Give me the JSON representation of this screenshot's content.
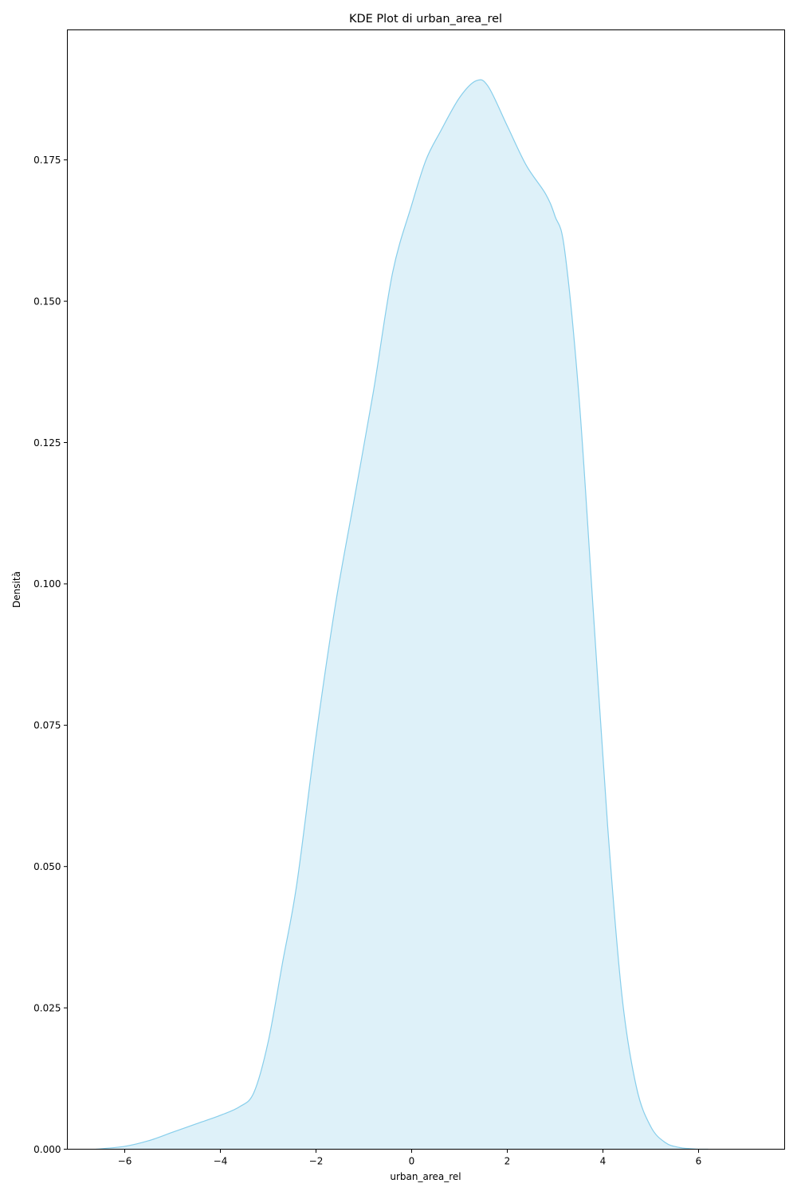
{
  "chart_data": {
    "type": "area",
    "title": "KDE Plot di urban_area_rel",
    "xlabel": "urban_area_rel",
    "ylabel": "Densità",
    "xlim": [
      -7.2,
      7.8
    ],
    "ylim": [
      0,
      0.198
    ],
    "xticks": [
      {
        "value": -6,
        "label": "−6"
      },
      {
        "value": -4,
        "label": "−4"
      },
      {
        "value": -2,
        "label": "−2"
      },
      {
        "value": 0,
        "label": "0"
      },
      {
        "value": 2,
        "label": "2"
      },
      {
        "value": 4,
        "label": "4"
      },
      {
        "value": 6,
        "label": "6"
      }
    ],
    "yticks": [
      {
        "value": 0,
        "label": "0.000"
      },
      {
        "value": 0.025,
        "label": "0.025"
      },
      {
        "value": 0.05,
        "label": "0.050"
      },
      {
        "value": 0.075,
        "label": "0.075"
      },
      {
        "value": 0.1,
        "label": "0.100"
      },
      {
        "value": 0.125,
        "label": "0.125"
      },
      {
        "value": 0.15,
        "label": "0.150"
      },
      {
        "value": 0.175,
        "label": "0.175"
      }
    ],
    "grid": false,
    "line_color": "#87ceeb",
    "fill_color": "#87ceeb",
    "fill_opacity": 0.28,
    "x": [
      -6.6,
      -6.0,
      -5.5,
      -5.0,
      -4.5,
      -4.0,
      -3.6,
      -3.3,
      -3.0,
      -2.7,
      -2.4,
      -2.0,
      -1.6,
      -1.2,
      -0.8,
      -0.4,
      0.0,
      0.3,
      0.6,
      1.0,
      1.35,
      1.6,
      2.0,
      2.4,
      2.8,
      3.0,
      3.2,
      3.5,
      3.8,
      4.1,
      4.4,
      4.7,
      5.0,
      5.3,
      5.6,
      6.0,
      6.2
    ],
    "y": [
      0.0,
      0.0005,
      0.0015,
      0.003,
      0.0045,
      0.006,
      0.0075,
      0.01,
      0.019,
      0.033,
      0.047,
      0.073,
      0.096,
      0.115,
      0.134,
      0.155,
      0.167,
      0.175,
      0.18,
      0.186,
      0.189,
      0.188,
      0.181,
      0.174,
      0.169,
      0.165,
      0.159,
      0.133,
      0.095,
      0.057,
      0.027,
      0.011,
      0.004,
      0.0012,
      0.0003,
      0.0,
      0.0
    ]
  }
}
